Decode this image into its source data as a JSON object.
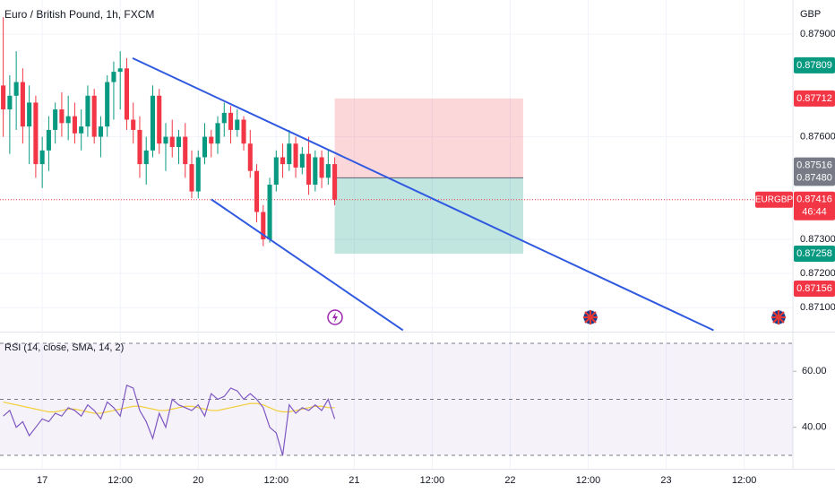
{
  "chart_data": [
    {
      "type": "candlestick",
      "title": "Euro / British Pound, 1h, FXCM",
      "currency": "GBP",
      "open": [
        0.8775,
        0.8768,
        0.8772,
        0.8776,
        0.8763,
        0.877,
        0.8752,
        0.8756,
        0.8762,
        0.8768,
        0.8764,
        0.8766,
        0.8761,
        0.8763,
        0.8772,
        0.876,
        0.8763,
        0.8776,
        0.8779,
        0.878,
        0.8765,
        0.8762,
        0.8752,
        0.8756,
        0.8772,
        0.8758,
        0.876,
        0.8757,
        0.876,
        0.8752,
        0.8744,
        0.8754,
        0.876,
        0.8758,
        0.8764,
        0.8767,
        0.8762,
        0.8765,
        0.8758,
        0.875,
        0.8738,
        0.873,
        0.8746,
        0.8754,
        0.8752,
        0.8758,
        0.8751,
        0.8755,
        0.8746,
        0.8754,
        0.8748,
        0.8752
      ],
      "high": [
        0.8795,
        0.8778,
        0.8785,
        0.878,
        0.8775,
        0.8772,
        0.876,
        0.8766,
        0.877,
        0.8773,
        0.8772,
        0.877,
        0.8768,
        0.8775,
        0.8774,
        0.8766,
        0.8778,
        0.8782,
        0.8785,
        0.8783,
        0.877,
        0.8766,
        0.876,
        0.8775,
        0.8774,
        0.8764,
        0.8765,
        0.8762,
        0.8764,
        0.8756,
        0.8756,
        0.8764,
        0.8762,
        0.8766,
        0.877,
        0.8769,
        0.8768,
        0.8766,
        0.8762,
        0.8752,
        0.874,
        0.8748,
        0.8756,
        0.8758,
        0.8762,
        0.876,
        0.8757,
        0.876,
        0.8756,
        0.8756,
        0.8756,
        0.8754
      ],
      "low": [
        0.876,
        0.8755,
        0.8762,
        0.8758,
        0.8752,
        0.8748,
        0.8745,
        0.875,
        0.8758,
        0.876,
        0.8759,
        0.8758,
        0.8756,
        0.876,
        0.8758,
        0.8754,
        0.876,
        0.8765,
        0.8768,
        0.8762,
        0.8758,
        0.8748,
        0.8746,
        0.8754,
        0.8755,
        0.875,
        0.8754,
        0.8752,
        0.8748,
        0.8742,
        0.8742,
        0.8752,
        0.8754,
        0.8755,
        0.876,
        0.8758,
        0.876,
        0.8756,
        0.8748,
        0.8735,
        0.8728,
        0.8729,
        0.8744,
        0.8748,
        0.875,
        0.8748,
        0.8749,
        0.8743,
        0.8744,
        0.8745,
        0.8746,
        0.874
      ],
      "close": [
        0.8768,
        0.8772,
        0.8776,
        0.8763,
        0.877,
        0.8752,
        0.8756,
        0.8762,
        0.8768,
        0.8764,
        0.8766,
        0.8761,
        0.8763,
        0.8772,
        0.876,
        0.8763,
        0.8776,
        0.8779,
        0.878,
        0.8765,
        0.8762,
        0.8752,
        0.8756,
        0.8772,
        0.8758,
        0.876,
        0.8757,
        0.876,
        0.8752,
        0.8744,
        0.8754,
        0.876,
        0.8758,
        0.8764,
        0.8767,
        0.8762,
        0.8765,
        0.8758,
        0.875,
        0.8738,
        0.873,
        0.8746,
        0.8754,
        0.8752,
        0.8758,
        0.8751,
        0.8755,
        0.8746,
        0.8754,
        0.8748,
        0.8752,
        0.87416
      ],
      "up_color": "#089981",
      "down_color": "#f23645",
      "xlim": [
        -0.5,
        121.5
      ],
      "xticks": [
        {
          "value": 6,
          "label": "17"
        },
        {
          "value": 18,
          "label": "12:00"
        },
        {
          "value": 30,
          "label": "20"
        },
        {
          "value": 42,
          "label": "12:00"
        },
        {
          "value": 54,
          "label": "21"
        },
        {
          "value": 66,
          "label": "12:00"
        },
        {
          "value": 78,
          "label": "22"
        },
        {
          "value": 90,
          "label": "12:00"
        },
        {
          "value": 102,
          "label": "23"
        },
        {
          "value": 114,
          "label": "12:00"
        }
      ],
      "ylim": [
        0.8703,
        0.88
      ],
      "yticks": [
        {
          "value": 0.879,
          "label": "0.87900"
        },
        {
          "value": 0.876,
          "label": "0.87600"
        },
        {
          "value": 0.873,
          "label": "0.87300"
        },
        {
          "value": 0.872,
          "label": "0.87200"
        },
        {
          "value": 0.871,
          "label": "0.87100"
        }
      ],
      "grid": true,
      "price_labels": [
        {
          "value": 0.87809,
          "label": "0.87809",
          "color": "#089981"
        },
        {
          "value": 0.87712,
          "label": "0.87712",
          "color": "#f23645"
        },
        {
          "value": 0.87516,
          "label": "0.87516",
          "color": "#787b86"
        },
        {
          "value": 0.8748,
          "label": "0.87480",
          "color": "#787b86"
        },
        {
          "value": 0.87258,
          "label": "0.87258",
          "color": "#089981"
        },
        {
          "value": 0.87156,
          "label": "0.87156",
          "color": "#f23645"
        }
      ],
      "last_price": {
        "value": 0.87416,
        "label": "0.87416",
        "name": "EURGBP",
        "countdown": "46:44",
        "color": "#f23645"
      },
      "trendlines": [
        {
          "x": [
            19.9,
            109.3
          ],
          "y": [
            0.8783,
            0.87034
          ]
        },
        {
          "x": [
            32,
            61.5
          ],
          "y": [
            0.87417,
            0.87034
          ]
        }
      ],
      "trendline_color": "#3059e0",
      "position": {
        "x": [
          51,
          80
        ],
        "entry": 0.8748,
        "stop": 0.87712,
        "target": 0.87258
      }
    },
    {
      "type": "line",
      "title": "RSI (14, close, SMA, 14, 2)",
      "series": [
        {
          "color": "#7e57c2",
          "values": [
            44,
            46,
            40,
            42,
            37,
            40,
            43,
            42,
            45,
            44,
            47,
            46,
            44,
            48,
            46,
            43,
            49,
            47,
            44,
            55,
            54,
            46,
            42,
            36,
            45,
            40,
            50,
            48,
            47,
            46,
            48,
            44,
            52,
            50,
            51,
            54,
            53,
            50,
            52,
            50,
            47,
            40,
            38,
            30,
            48,
            45,
            47,
            46,
            48,
            46,
            50,
            43
          ]
        },
        {
          "color": "#f2cf3a",
          "values": [
            49,
            48.5,
            48,
            47.5,
            47,
            46.5,
            46,
            45.5,
            45.5,
            46,
            46.5,
            46.5,
            46,
            45.5,
            45,
            45,
            45.5,
            46,
            46.5,
            47,
            47.5,
            47.5,
            47,
            46.5,
            46,
            46,
            46.5,
            47,
            47.5,
            47.5,
            47,
            46.5,
            46,
            46,
            46.5,
            47,
            47.5,
            48,
            48.5,
            48.5,
            48,
            47,
            46,
            45.5,
            45.5,
            46,
            46.5,
            47,
            47.5,
            47.5,
            47,
            47
          ]
        }
      ],
      "ylim": [
        25.5,
        73.5
      ],
      "yticks": [
        {
          "value": 60,
          "label": "60.00"
        },
        {
          "value": 40,
          "label": "40.00"
        }
      ],
      "levels": [
        70,
        50,
        30
      ],
      "band": [
        30,
        70
      ]
    }
  ]
}
